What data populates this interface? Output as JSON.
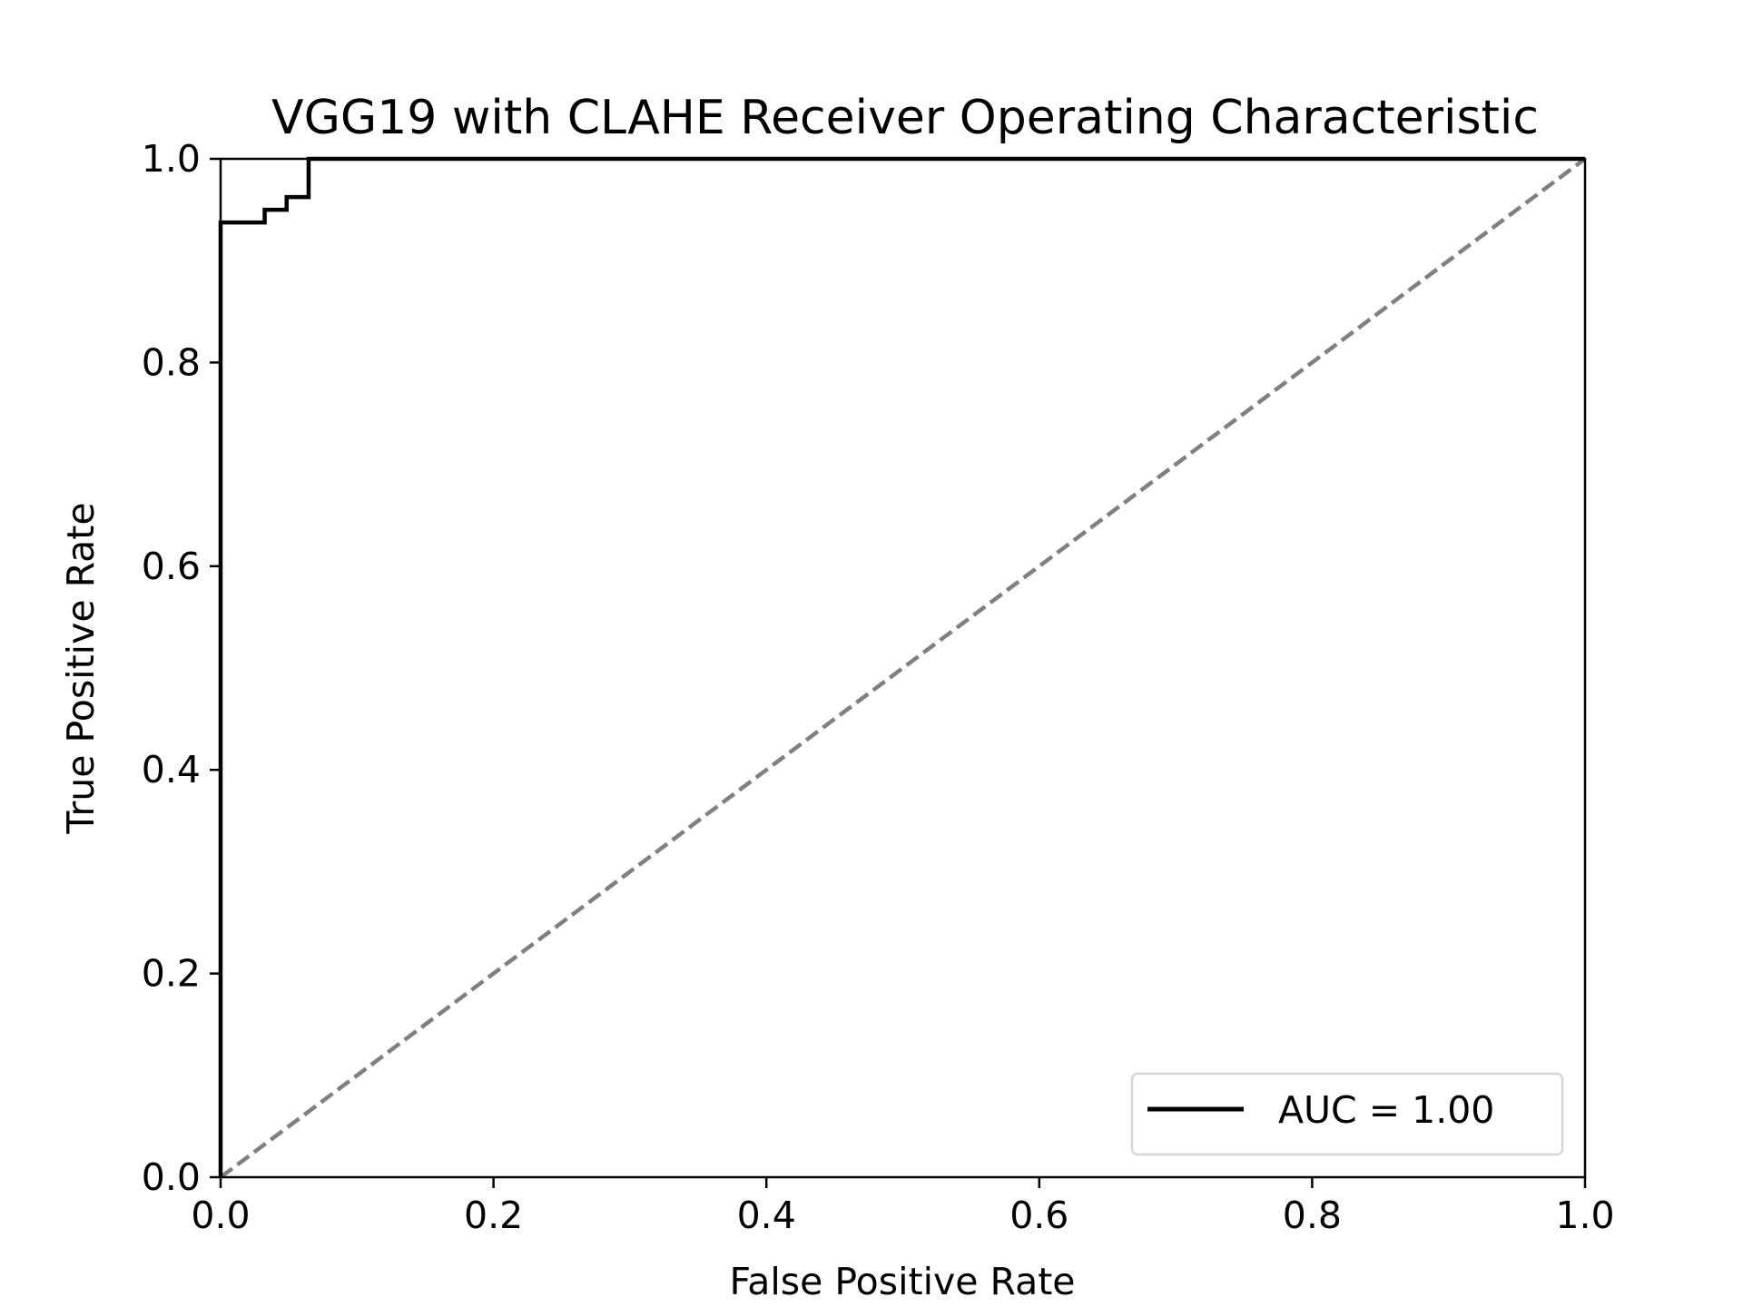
{
  "chart_data": {
    "type": "line",
    "title": "VGG19 with CLAHE Receiver Operating Characteristic",
    "xlabel": "False Positive Rate",
    "ylabel": "True Positive Rate",
    "xlim": [
      0.0,
      1.0
    ],
    "ylim": [
      0.0,
      1.0
    ],
    "xticks": [
      "0.0",
      "0.2",
      "0.4",
      "0.6",
      "0.8",
      "1.0"
    ],
    "yticks": [
      "0.0",
      "0.2",
      "0.4",
      "0.6",
      "0.8",
      "1.0"
    ],
    "grid": false,
    "legend_position": "lower-right",
    "series": [
      {
        "name": "AUC = 1.00",
        "style": "solid",
        "color": "#000000",
        "x": [
          0.0,
          0.0,
          0.0323,
          0.0323,
          0.0484,
          0.0484,
          0.0645,
          0.0645,
          1.0
        ],
        "y": [
          0.0,
          0.9375,
          0.9375,
          0.95,
          0.95,
          0.9625,
          0.9625,
          1.0,
          1.0
        ]
      },
      {
        "style": "dashed",
        "color": "#808080",
        "x": [
          0.0,
          1.0
        ],
        "y": [
          0.0,
          1.0
        ]
      }
    ]
  }
}
